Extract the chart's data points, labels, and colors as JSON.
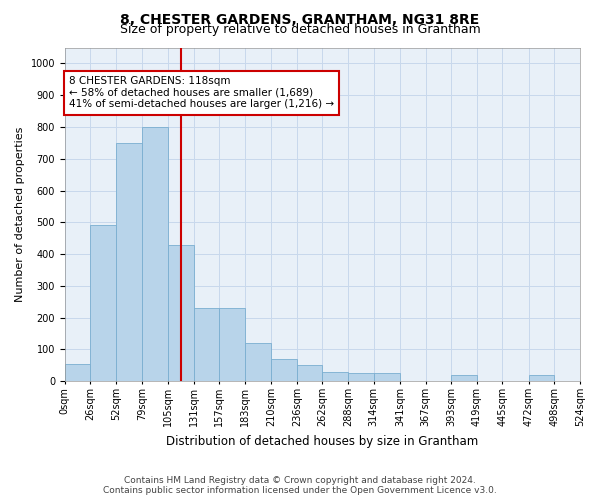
{
  "title": "8, CHESTER GARDENS, GRANTHAM, NG31 8RE",
  "subtitle": "Size of property relative to detached houses in Grantham",
  "xlabel": "Distribution of detached houses by size in Grantham",
  "ylabel": "Number of detached properties",
  "bar_color": "#b8d4ea",
  "bar_edge_color": "#7aaed0",
  "grid_color": "#c8d8ec",
  "plot_bg_color": "#e8f0f8",
  "property_line_color": "#cc0000",
  "footer_line1": "Contains HM Land Registry data © Crown copyright and database right 2024.",
  "footer_line2": "Contains public sector information licensed under the Open Government Licence v3.0.",
  "annotation_line1": "8 CHESTER GARDENS: 118sqm",
  "annotation_line2": "← 58% of detached houses are smaller (1,689)",
  "annotation_line3": "41% of semi-detached houses are larger (1,216) →",
  "bins": [
    "0sqm",
    "26sqm",
    "52sqm",
    "79sqm",
    "105sqm",
    "131sqm",
    "157sqm",
    "183sqm",
    "210sqm",
    "236sqm",
    "262sqm",
    "288sqm",
    "314sqm",
    "341sqm",
    "367sqm",
    "393sqm",
    "419sqm",
    "445sqm",
    "472sqm",
    "498sqm",
    "524sqm"
  ],
  "bin_lefts": [
    0,
    26,
    52,
    79,
    105,
    131,
    157,
    183,
    210,
    236,
    262,
    288,
    314,
    341,
    367,
    393,
    419,
    445,
    472,
    498
  ],
  "bin_widths": [
    26,
    26,
    27,
    26,
    26,
    26,
    26,
    27,
    26,
    26,
    26,
    26,
    27,
    26,
    26,
    26,
    26,
    27,
    26,
    26
  ],
  "bar_heights": [
    55,
    490,
    750,
    800,
    430,
    230,
    230,
    120,
    70,
    50,
    30,
    25,
    25,
    0,
    0,
    20,
    0,
    0,
    20,
    0
  ],
  "property_size": 118,
  "ylim": [
    0,
    1050
  ],
  "yticks": [
    0,
    100,
    200,
    300,
    400,
    500,
    600,
    700,
    800,
    900,
    1000
  ],
  "xlim_right": 524,
  "title_fontsize": 10,
  "subtitle_fontsize": 9,
  "xlabel_fontsize": 8.5,
  "ylabel_fontsize": 8,
  "tick_fontsize": 7,
  "footer_fontsize": 6.5,
  "annotation_fontsize": 7.5
}
